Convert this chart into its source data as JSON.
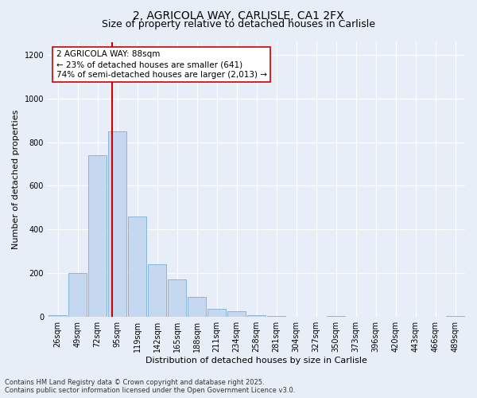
{
  "title_line1": "2, AGRICOLA WAY, CARLISLE, CA1 2FX",
  "title_line2": "Size of property relative to detached houses in Carlisle",
  "xlabel": "Distribution of detached houses by size in Carlisle",
  "ylabel": "Number of detached properties",
  "bar_color": "#c5d8f0",
  "bar_edge_color": "#7bafd4",
  "bg_color": "#e8eef8",
  "grid_color": "#ffffff",
  "categories": [
    "26sqm",
    "49sqm",
    "72sqm",
    "95sqm",
    "119sqm",
    "142sqm",
    "165sqm",
    "188sqm",
    "211sqm",
    "234sqm",
    "258sqm",
    "281sqm",
    "304sqm",
    "327sqm",
    "350sqm",
    "373sqm",
    "396sqm",
    "420sqm",
    "443sqm",
    "466sqm",
    "489sqm"
  ],
  "values": [
    8,
    200,
    740,
    850,
    460,
    240,
    170,
    90,
    35,
    25,
    8,
    3,
    0,
    0,
    3,
    0,
    0,
    0,
    0,
    0,
    3
  ],
  "vline_x": 2.75,
  "vline_color": "#cc0000",
  "annotation_text": "2 AGRICOLA WAY: 88sqm\n← 23% of detached houses are smaller (641)\n74% of semi-detached houses are larger (2,013) →",
  "ylim": [
    0,
    1260
  ],
  "yticks": [
    0,
    200,
    400,
    600,
    800,
    1000,
    1200
  ],
  "footer_text": "Contains HM Land Registry data © Crown copyright and database right 2025.\nContains public sector information licensed under the Open Government Licence v3.0.",
  "title_fontsize": 10,
  "subtitle_fontsize": 9,
  "axis_label_fontsize": 8,
  "tick_fontsize": 7,
  "annotation_fontsize": 7.5,
  "footer_fontsize": 6
}
